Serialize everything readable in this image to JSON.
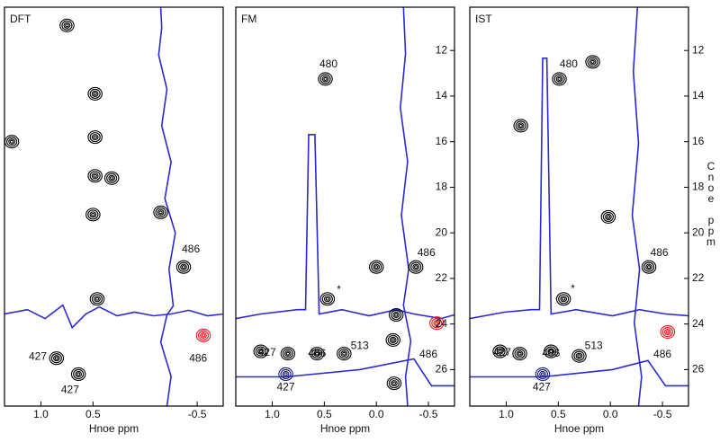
{
  "chart_data": [
    {
      "type": "contour",
      "title": "DFT",
      "xlabel": "Hnoe ppm",
      "xlim": [
        1.35,
        -0.75
      ],
      "ylim": [
        10.1,
        27.6
      ],
      "xticks": [
        {
          "value": 1,
          "label": "1.0"
        },
        0.5,
        -0.5
      ],
      "series": [
        {
          "color": "#000000",
          "x": [
            0.48,
            0.48,
            0.48,
            0.32,
            0.5,
            -0.37,
            0.46,
            0.85,
            0.64,
            1.28,
            0.75,
            -0.15
          ],
          "values": [
            13.9,
            15.8,
            17.5,
            17.6,
            19.2,
            21.5,
            22.9,
            25.5,
            26.2,
            16.0,
            10.9,
            19.1
          ]
        },
        {
          "color": "#e02020",
          "x": [
            -0.56
          ],
          "values": [
            24.5
          ]
        }
      ],
      "lines": [
        {
          "color": "#2a2ad0",
          "x": [
            -0.15,
            -0.16,
            -0.13,
            -0.21,
            -0.16,
            -0.25,
            -0.19,
            -0.29,
            -0.23,
            -0.27,
            -0.21,
            -0.15,
            -0.25,
            -0.21
          ],
          "values": [
            10.1,
            11.0,
            12.2,
            13.7,
            15.3,
            16.9,
            18.5,
            20.0,
            21.6,
            23.2,
            23.6,
            24.8,
            26.3,
            27.6
          ]
        },
        {
          "color": "#2a2ad0",
          "x": [
            1.35,
            1.13,
            0.96,
            0.79,
            0.7,
            0.57,
            0.44,
            0.27,
            0.1,
            -0.08,
            -0.25,
            -0.42,
            -0.6,
            -0.75
          ],
          "values": [
            23.56,
            23.37,
            23.76,
            23.17,
            24.16,
            23.56,
            23.25,
            23.64,
            23.48,
            23.64,
            23.56,
            23.4,
            23.64,
            23.56
          ]
        }
      ],
      "annotations": [
        {
          "text": "486",
          "x": -0.44,
          "y": 20.73
        },
        {
          "text": "486",
          "x": -0.51,
          "y": 25.53
        },
        {
          "text": "427",
          "x": 1.03,
          "y": 25.45
        },
        {
          "text": "427",
          "x": 0.72,
          "y": 26.9
        }
      ]
    },
    {
      "type": "contour",
      "title": "FM",
      "xlabel": "Hnoe ppm",
      "xlim": [
        1.35,
        -0.75
      ],
      "ylim": [
        10.1,
        27.6
      ],
      "xticks": [
        {
          "value": 1,
          "label": "1.0"
        },
        0.5,
        {
          "value": 0,
          "label": "0.0"
        },
        -0.5
      ],
      "yticks": [
        12,
        14,
        16,
        18,
        20,
        22,
        24,
        26
      ],
      "series": [
        {
          "color": "#000000",
          "x": [
            0.49,
            0.47,
            1.11,
            0.85,
            0.57,
            0.31,
            -0.38,
            0.0,
            -0.19,
            -0.16,
            -0.17
          ],
          "values": [
            13.25,
            22.9,
            25.2,
            25.3,
            25.3,
            25.3,
            21.5,
            21.5,
            23.6,
            24.7,
            26.6
          ]
        },
        {
          "color": "#e02020",
          "x": [
            -0.58
          ],
          "values": [
            23.96
          ]
        },
        {
          "color": "#1a1a90",
          "x": [
            0.87
          ],
          "values": [
            26.2
          ]
        }
      ],
      "lines": [
        {
          "color": "#2a2ad0",
          "x": [
            1.35,
            1.11,
            0.76,
            0.68,
            0.65,
            0.59,
            0.55,
            0.33,
            0.07,
            -0.19,
            -0.36,
            -0.62,
            -0.78
          ],
          "values": [
            23.76,
            23.56,
            23.37,
            23.37,
            15.69,
            15.69,
            23.56,
            23.37,
            23.64,
            23.37,
            23.56,
            23.76,
            23.56
          ]
        },
        {
          "color": "#2a2ad0",
          "x": [
            1.35,
            0.87,
            0.16,
            -0.36,
            -0.53,
            -0.78
          ],
          "values": [
            26.32,
            26.32,
            26.0,
            25.53,
            26.71,
            26.71
          ]
        },
        {
          "color": "#2a2ad0",
          "x": [
            -0.26,
            -0.28,
            -0.23,
            -0.3,
            -0.24,
            -0.31,
            -0.26,
            -0.33,
            -0.28,
            -0.3
          ],
          "values": [
            10.1,
            12.15,
            14.51,
            16.87,
            19.23,
            21.6,
            23.17,
            24.75,
            26.32,
            27.58
          ]
        }
      ],
      "annotations": [
        {
          "text": "480",
          "x": 0.46,
          "y": 12.62
        },
        {
          "text": "*",
          "x": 0.36,
          "y": 22.5
        },
        {
          "text": "427",
          "x": 1.05,
          "y": 25.26
        },
        {
          "text": "406",
          "x": 0.57,
          "y": 25.3
        },
        {
          "text": "513",
          "x": 0.16,
          "y": 24.98
        },
        {
          "text": "486",
          "x": -0.48,
          "y": 20.89
        },
        {
          "text": "486",
          "x": -0.5,
          "y": 25.34
        },
        {
          "text": "427",
          "x": 0.87,
          "y": 26.79
        }
      ]
    },
    {
      "type": "contour",
      "title": "IST",
      "xlabel": "Hnoe ppm",
      "ylabel": "Cnoe ppm",
      "xlim": [
        1.35,
        -0.75
      ],
      "ylim": [
        10.1,
        27.6
      ],
      "xticks": [
        {
          "value": 1,
          "label": "1.0"
        },
        0.5,
        {
          "value": 0,
          "label": "0.0"
        },
        -0.5
      ],
      "yticks": [
        12,
        14,
        16,
        18,
        20,
        22,
        24,
        26
      ],
      "series": [
        {
          "color": "#000000",
          "x": [
            0.49,
            0.45,
            1.06,
            0.87,
            0.57,
            0.3,
            -0.37,
            0.86,
            0.17,
            0.02
          ],
          "values": [
            13.25,
            22.9,
            25.2,
            25.3,
            25.2,
            25.4,
            21.5,
            15.3,
            12.5,
            19.3
          ]
        },
        {
          "color": "#e02020",
          "x": [
            -0.55
          ],
          "values": [
            24.35
          ]
        },
        {
          "color": "#1a1a90",
          "x": [
            0.65
          ],
          "values": [
            26.2
          ]
        }
      ],
      "lines": [
        {
          "color": "#2a2ad0",
          "x": [
            1.35,
            1.02,
            0.76,
            0.68,
            0.65,
            0.61,
            0.57,
            0.33,
            -0.02,
            -0.28,
            -0.53,
            -0.75
          ],
          "values": [
            23.76,
            23.48,
            23.37,
            23.37,
            12.34,
            12.34,
            23.56,
            23.37,
            23.64,
            23.37,
            23.56,
            23.64
          ]
        },
        {
          "color": "#2a2ad0",
          "x": [
            1.35,
            0.65,
            -0.02,
            -0.36,
            -0.53,
            -0.75
          ],
          "values": [
            26.32,
            26.32,
            26.0,
            25.6,
            26.71,
            26.71
          ]
        },
        {
          "color": "#2a2ad0",
          "x": [
            -0.26,
            -0.22,
            -0.27,
            -0.21,
            -0.28,
            -0.23,
            -0.3,
            -0.27
          ],
          "values": [
            10.1,
            12.93,
            16.08,
            19.23,
            21.6,
            23.96,
            26.32,
            27.58
          ]
        }
      ],
      "annotations": [
        {
          "text": "480",
          "x": 0.4,
          "y": 12.62
        },
        {
          "text": "*",
          "x": 0.36,
          "y": 22.46
        },
        {
          "text": "427",
          "x": 1.04,
          "y": 25.26
        },
        {
          "text": "406",
          "x": 0.57,
          "y": 25.3
        },
        {
          "text": "513",
          "x": 0.16,
          "y": 24.98
        },
        {
          "text": "486",
          "x": -0.47,
          "y": 20.89
        },
        {
          "text": "486",
          "x": -0.5,
          "y": 25.34
        },
        {
          "text": "427",
          "x": 0.66,
          "y": 26.79
        }
      ]
    }
  ]
}
